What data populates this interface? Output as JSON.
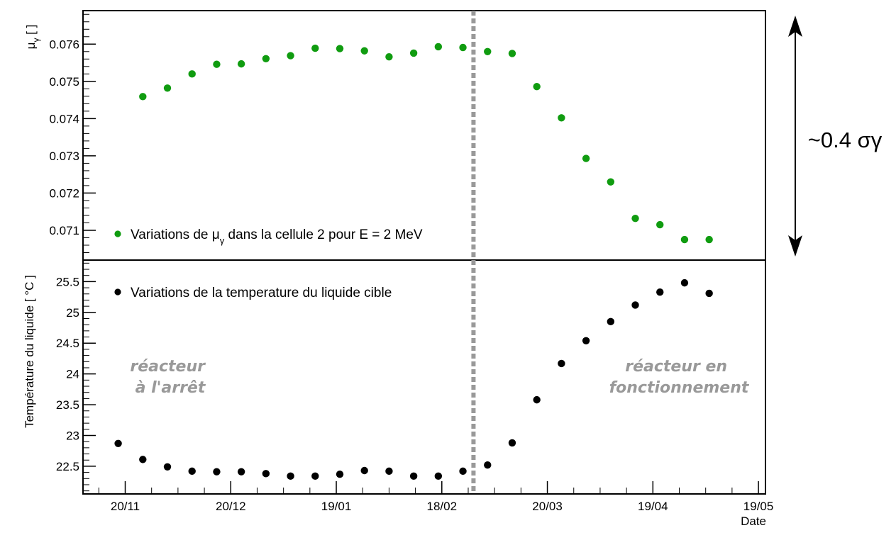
{
  "colors": {
    "mu_series": "#109c10",
    "temp_series": "#000000",
    "separator": "#999999",
    "annotation": "#999999"
  },
  "side_annotation": "~0.4 σγ",
  "chart_data": [
    {
      "type": "scatter",
      "panel": "top",
      "ylabel_main": "μ",
      "ylabel_sub": "γ",
      "ylabel_suffix": " [ ]",
      "ylim": [
        0.0702,
        0.0769
      ],
      "yticks": [
        0.071,
        0.072,
        0.073,
        0.074,
        0.075,
        0.076
      ],
      "ytick_labels": [
        "0.071",
        "0.072",
        "0.073",
        "0.074",
        "0.075",
        "0.076"
      ],
      "grid": false,
      "legend_placement": "bottom-left",
      "series": [
        {
          "legend_pre": "Variations de μ",
          "legend_sub": "γ",
          "legend_post": " dans la cellule 2 pour E = 2 MeV",
          "x": [
            "2012-11-25",
            "2012-12-02",
            "2012-12-09",
            "2012-12-16",
            "2012-12-23",
            "2012-12-30",
            "2013-01-06",
            "2013-01-13",
            "2013-01-20",
            "2013-01-27",
            "2013-02-03",
            "2013-02-10",
            "2013-02-17",
            "2013-02-24",
            "2013-03-03",
            "2013-03-10",
            "2013-03-17",
            "2013-03-24",
            "2013-03-31",
            "2013-04-07",
            "2013-04-14",
            "2013-04-21",
            "2013-04-28",
            "2013-05-05"
          ],
          "y": [
            0.07459,
            0.07482,
            0.0752,
            0.07546,
            0.07547,
            0.07561,
            0.07569,
            0.07589,
            0.07588,
            0.07582,
            0.07566,
            0.07576,
            0.07593,
            0.07591,
            0.0758,
            0.07575,
            0.07486,
            0.07402,
            0.07293,
            0.0723,
            0.07132,
            0.07115,
            0.07075,
            0.07075
          ]
        }
      ]
    },
    {
      "type": "scatter",
      "panel": "bottom",
      "ylabel": "Température du liquide [ °C ]",
      "xlabel": "Date",
      "ylim": [
        22.05,
        25.85
      ],
      "yticks": [
        22.5,
        23,
        23.5,
        24,
        24.5,
        25,
        25.5
      ],
      "ytick_labels": [
        "22.5",
        "23",
        "23.5",
        "24",
        "24.5",
        "25",
        "25.5"
      ],
      "xlim": [
        "2012-11-08",
        "2013-05-21"
      ],
      "xticks": [
        "2012-11-20",
        "2012-12-20",
        "2013-01-19",
        "2013-02-18",
        "2013-03-20",
        "2013-04-19",
        "2013-05-19"
      ],
      "xtick_labels": [
        "20/11",
        "20/12",
        "19/01",
        "18/02",
        "20/03",
        "19/04",
        "19/05"
      ],
      "grid": false,
      "legend_placement": "top-left",
      "annotations": [
        {
          "lines": [
            "réacteur",
            "à l'arrêt"
          ],
          "x": "2012-12-04",
          "y": 23.85
        },
        {
          "lines": [
            "réacteur en",
            "fonctionnement"
          ],
          "x": "2013-04-27",
          "y": 23.85
        }
      ],
      "separator_x": "2013-02-27",
      "series": [
        {
          "name": "Variations de la temperature du liquide cible",
          "x": [
            "2012-11-18",
            "2012-11-25",
            "2012-12-02",
            "2012-12-09",
            "2012-12-16",
            "2012-12-23",
            "2012-12-30",
            "2013-01-06",
            "2013-01-13",
            "2013-01-20",
            "2013-01-27",
            "2013-02-03",
            "2013-02-10",
            "2013-02-17",
            "2013-02-24",
            "2013-03-03",
            "2013-03-10",
            "2013-03-17",
            "2013-03-24",
            "2013-03-31",
            "2013-04-07",
            "2013-04-14",
            "2013-04-21",
            "2013-04-28",
            "2013-05-05"
          ],
          "y": [
            22.87,
            22.61,
            22.49,
            22.42,
            22.41,
            22.41,
            22.38,
            22.34,
            22.34,
            22.37,
            22.43,
            22.42,
            22.34,
            22.34,
            22.42,
            22.52,
            22.88,
            23.58,
            24.17,
            24.54,
            24.85,
            25.12,
            25.33,
            25.48,
            25.31
          ]
        }
      ]
    }
  ]
}
